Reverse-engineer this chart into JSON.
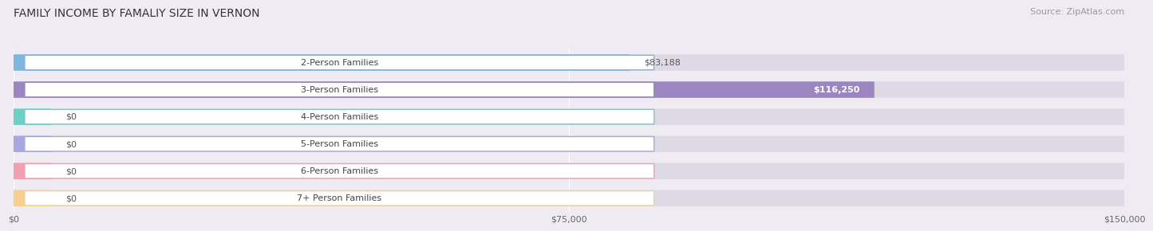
{
  "title": "FAMILY INCOME BY FAMALIY SIZE IN VERNON",
  "source": "Source: ZipAtlas.com",
  "categories": [
    "2-Person Families",
    "3-Person Families",
    "4-Person Families",
    "5-Person Families",
    "6-Person Families",
    "7+ Person Families"
  ],
  "values": [
    83188,
    116250,
    0,
    0,
    0,
    0
  ],
  "bar_colors": [
    "#7eb6e0",
    "#9b86c0",
    "#6ecfc4",
    "#a8a8e0",
    "#f0a0b0",
    "#f5d090"
  ],
  "value_labels": [
    "$83,188",
    "$116,250",
    "$0",
    "$0",
    "$0",
    "$0"
  ],
  "value_label_inside": [
    false,
    true,
    false,
    false,
    false,
    false
  ],
  "x_ticks": [
    0,
    75000,
    150000
  ],
  "x_tick_labels": [
    "$0",
    "$75,000",
    "$150,000"
  ],
  "xlim": [
    0,
    150000
  ],
  "background_color": "#eeecf2",
  "row_bg_color": "#dddae6",
  "title_fontsize": 10,
  "source_fontsize": 8,
  "label_fontsize": 8,
  "value_fontsize": 8
}
